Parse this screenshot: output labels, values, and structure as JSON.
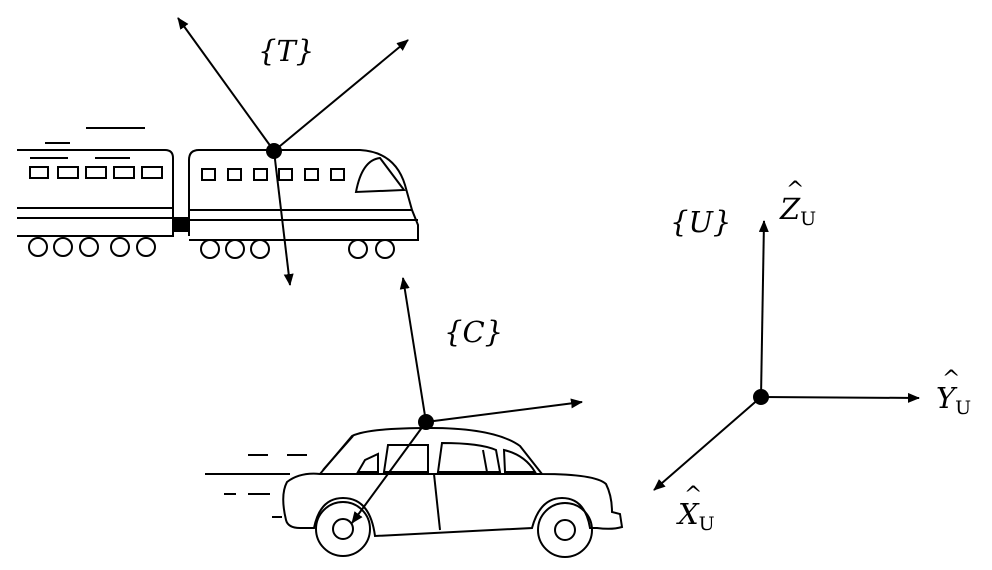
{
  "frames": {
    "train": {
      "label": "{T}"
    },
    "car": {
      "label": "{C}"
    },
    "universe": {
      "label": "{U}"
    }
  },
  "universe_axes": {
    "x": {
      "symbol": "X",
      "subscript": "U"
    },
    "y": {
      "symbol": "Y",
      "subscript": "U"
    },
    "z": {
      "symbol": "Z",
      "subscript": "U"
    }
  },
  "colors": {
    "ink": "#000000",
    "background": "#ffffff"
  }
}
